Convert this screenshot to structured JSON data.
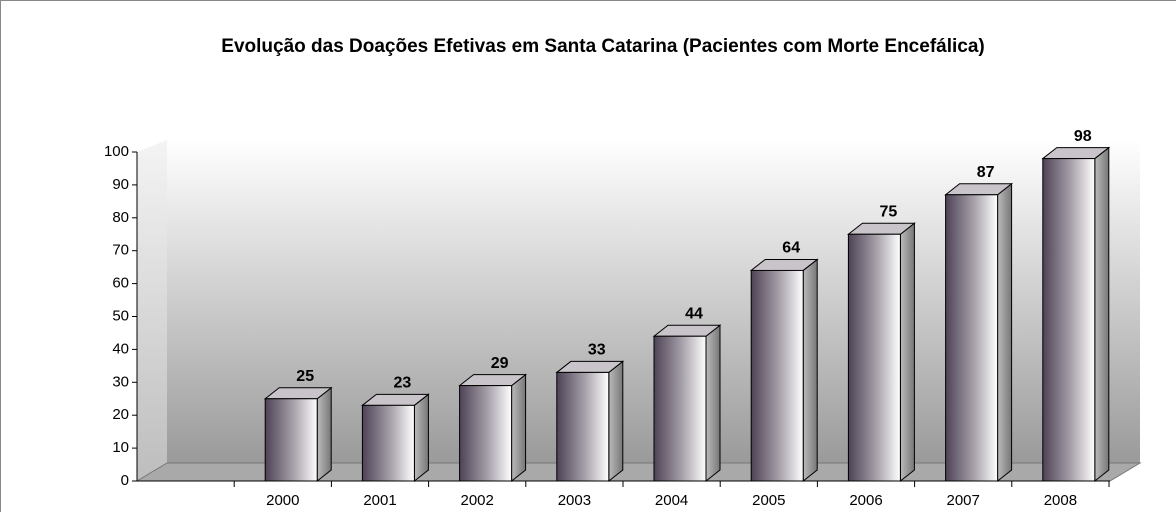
{
  "chart_data": {
    "type": "bar3d",
    "title": "Evolução das Doações Efetivas  em Santa Catarina (Pacientes com Morte Encefálica)",
    "categories": [
      null,
      "2000",
      "2001",
      "2002",
      "2003",
      "2004",
      "2005",
      "2006",
      "2007",
      "2008"
    ],
    "values": [
      null,
      25,
      23,
      29,
      33,
      44,
      64,
      75,
      87,
      98
    ],
    "color": "#5a5060",
    "ylim": [
      0,
      100
    ],
    "yticks": [
      0,
      10,
      20,
      30,
      40,
      50,
      60,
      70,
      80,
      90,
      100
    ]
  }
}
